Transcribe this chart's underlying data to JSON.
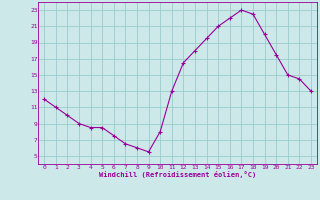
{
  "x": [
    0,
    1,
    2,
    3,
    4,
    5,
    6,
    7,
    8,
    9,
    10,
    11,
    12,
    13,
    14,
    15,
    16,
    17,
    18,
    19,
    20,
    21,
    22,
    23
  ],
  "y": [
    12.0,
    11.0,
    10.0,
    9.0,
    8.5,
    8.5,
    7.5,
    6.5,
    6.0,
    5.5,
    8.0,
    13.0,
    16.5,
    18.0,
    19.5,
    21.0,
    22.0,
    23.0,
    22.5,
    20.0,
    17.5,
    15.0,
    14.5,
    13.0
  ],
  "xlabel": "Windchill (Refroidissement éolien,°C)",
  "xlim": [
    -0.5,
    23.5
  ],
  "ylim": [
    4,
    24
  ],
  "yticks": [
    5,
    7,
    9,
    11,
    13,
    15,
    17,
    19,
    21,
    23
  ],
  "xticks": [
    0,
    1,
    2,
    3,
    4,
    5,
    6,
    7,
    8,
    9,
    10,
    11,
    12,
    13,
    14,
    15,
    16,
    17,
    18,
    19,
    20,
    21,
    22,
    23
  ],
  "line_color": "#990099",
  "bg_color": "#cce8e8",
  "grid_color": "#99cccc",
  "font_color": "#990099"
}
